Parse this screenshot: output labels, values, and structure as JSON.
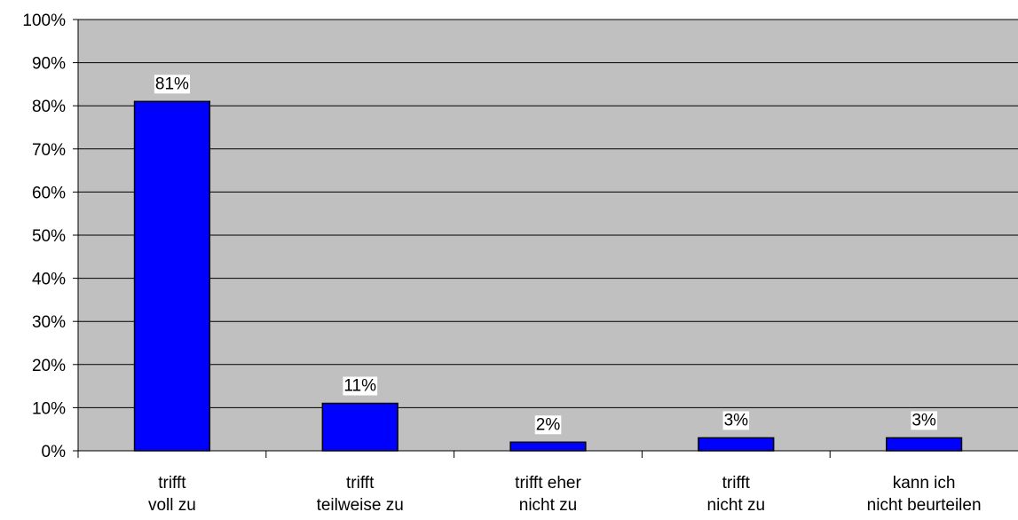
{
  "chart_data": {
    "type": "bar",
    "categories": [
      [
        "trifft",
        "voll zu"
      ],
      [
        "trifft",
        "teilweise zu"
      ],
      [
        "trifft eher",
        "nicht zu"
      ],
      [
        "trifft",
        "nicht zu"
      ],
      [
        "kann ich",
        "nicht beurteilen"
      ]
    ],
    "values": [
      81,
      11,
      2,
      3,
      3
    ],
    "data_labels": [
      "81%",
      "11%",
      "2%",
      "3%",
      "3%"
    ],
    "y_ticks": [
      "0%",
      "10%",
      "20%",
      "30%",
      "40%",
      "50%",
      "60%",
      "70%",
      "80%",
      "90%",
      "100%"
    ],
    "ylim": [
      0,
      100
    ],
    "title": "",
    "xlabel": "",
    "ylabel": "",
    "grid": true,
    "legend": "none",
    "colors": {
      "bar_fill": "#0000ff",
      "bar_stroke": "#000000",
      "plot_background": "#c0c0c0",
      "gridline": "#000000",
      "data_label_background": "#ffffff"
    }
  }
}
